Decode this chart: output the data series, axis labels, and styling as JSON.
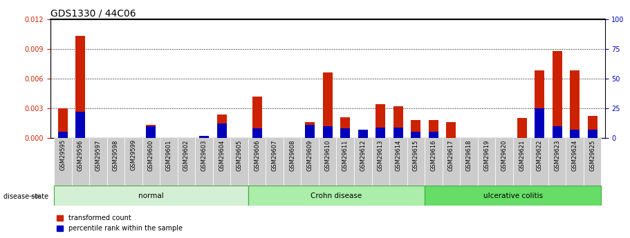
{
  "title": "GDS1330 / 44C06",
  "samples": [
    "GSM29595",
    "GSM29596",
    "GSM29597",
    "GSM29598",
    "GSM29599",
    "GSM29600",
    "GSM29601",
    "GSM29602",
    "GSM29603",
    "GSM29604",
    "GSM29605",
    "GSM29606",
    "GSM29607",
    "GSM29608",
    "GSM29609",
    "GSM29610",
    "GSM29611",
    "GSM29612",
    "GSM29613",
    "GSM29614",
    "GSM29615",
    "GSM29616",
    "GSM29617",
    "GSM29618",
    "GSM29619",
    "GSM29620",
    "GSM29621",
    "GSM29622",
    "GSM29623",
    "GSM29624",
    "GSM29625"
  ],
  "transformed_count": [
    0.003,
    0.0103,
    0.0,
    0.0,
    0.0,
    0.0013,
    0.0,
    0.0,
    0.0001,
    0.0024,
    0.0,
    0.0042,
    0.0,
    0.0,
    0.0016,
    0.0066,
    0.0021,
    0.0008,
    0.0034,
    0.0032,
    0.0018,
    0.0018,
    0.0016,
    0.0,
    0.0,
    0.0,
    0.002,
    0.0068,
    0.0088,
    0.0068,
    0.0022
  ],
  "percentile_rank": [
    5,
    22,
    0,
    0,
    0,
    10,
    0,
    0,
    2,
    12,
    0,
    8,
    0,
    0,
    11,
    10,
    8,
    7,
    9,
    9,
    5,
    5,
    0,
    0,
    0,
    0,
    0,
    25,
    10,
    7,
    7
  ],
  "disease_groups": [
    {
      "label": "normal",
      "start": 0,
      "end": 10,
      "color": "#d4f0d4"
    },
    {
      "label": "Crohn disease",
      "start": 11,
      "end": 20,
      "color": "#aaeeaa"
    },
    {
      "label": "ulcerative colitis",
      "start": 21,
      "end": 30,
      "color": "#66dd66"
    }
  ],
  "bar_color_red": "#cc2200",
  "bar_color_blue": "#0000bb",
  "ylim_left": [
    0,
    0.012
  ],
  "ylim_right": [
    0,
    100
  ],
  "yticks_left": [
    0,
    0.003,
    0.006,
    0.009,
    0.012
  ],
  "yticks_right": [
    0,
    25,
    50,
    75,
    100
  ],
  "ylabel_left_color": "#cc2200",
  "ylabel_right_color": "#0000bb",
  "title_fontsize": 10,
  "tick_fontsize": 7,
  "xtick_fontsize": 6,
  "disease_state_label": "disease state",
  "legend_red": "transformed count",
  "legend_blue": "percentile rank within the sample"
}
